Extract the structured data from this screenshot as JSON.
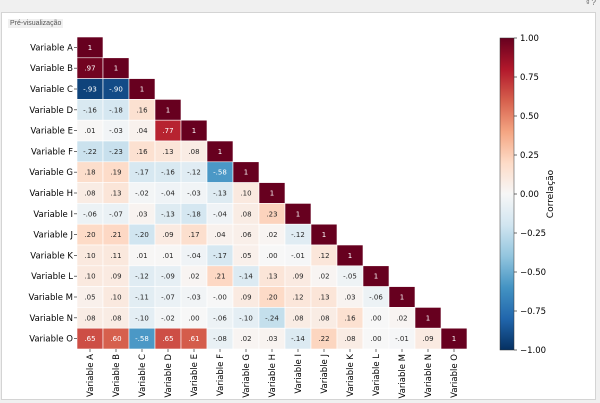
{
  "panel": {
    "title": "Pré-visualização",
    "corner_text": "ᵍ ?"
  },
  "chart_data": {
    "type": "heatmap",
    "variables": [
      "Variable A",
      "Variable B",
      "Variable C",
      "Variable D",
      "Variable E",
      "Variable F",
      "Variable G",
      "Variable H",
      "Variable I",
      "Variable J",
      "Variable K",
      "Variable L",
      "Variable M",
      "Variable N",
      "Variable O"
    ],
    "matrix_lower": [
      [
        1
      ],
      [
        0.97,
        1
      ],
      [
        -0.93,
        -0.9,
        1
      ],
      [
        -0.16,
        -0.18,
        0.16,
        1
      ],
      [
        0.01,
        -0.03,
        0.04,
        0.77,
        1
      ],
      [
        -0.22,
        -0.23,
        0.16,
        0.13,
        0.08,
        1
      ],
      [
        0.18,
        0.19,
        -0.17,
        -0.16,
        -0.12,
        -0.58,
        1
      ],
      [
        0.08,
        0.13,
        -0.02,
        -0.04,
        -0.03,
        -0.13,
        0.1,
        1
      ],
      [
        -0.06,
        -0.07,
        0.03,
        -0.13,
        -0.18,
        -0.04,
        0.08,
        0.23,
        1
      ],
      [
        0.2,
        0.21,
        -0.2,
        0.09,
        0.17,
        0.04,
        0.06,
        0.02,
        -0.12,
        1
      ],
      [
        0.1,
        0.11,
        0.01,
        0.01,
        -0.04,
        -0.17,
        0.05,
        0.0,
        -0.01,
        0.12,
        1
      ],
      [
        0.1,
        0.09,
        -0.12,
        -0.09,
        0.02,
        0.21,
        -0.14,
        0.13,
        0.09,
        0.02,
        -0.05,
        1
      ],
      [
        0.05,
        0.1,
        -0.11,
        -0.07,
        -0.03,
        -0.0,
        0.09,
        0.2,
        0.12,
        0.13,
        0.03,
        -0.06,
        1
      ],
      [
        0.08,
        0.08,
        -0.1,
        -0.02,
        0.0,
        -0.06,
        -0.1,
        -0.24,
        0.08,
        0.08,
        0.16,
        0.0,
        0.02,
        1
      ],
      [
        0.65,
        0.6,
        -0.58,
        0.65,
        0.61,
        -0.08,
        0.02,
        0.03,
        -0.14,
        0.22,
        0.08,
        0.0,
        -0.01,
        0.09,
        1
      ]
    ],
    "cell_labels": [
      [
        "1"
      ],
      [
        ".97",
        "1"
      ],
      [
        "-.93",
        "-.90",
        "1"
      ],
      [
        "-.16",
        "-.18",
        ".16",
        "1"
      ],
      [
        ".01",
        "-.03",
        ".04",
        ".77",
        "1"
      ],
      [
        "-.22",
        "-.23",
        ".16",
        ".13",
        ".08",
        "1"
      ],
      [
        ".18",
        ".19",
        "-.17",
        "-.16",
        "-.12",
        "-.58",
        "1"
      ],
      [
        ".08",
        ".13",
        "-.02",
        "-.04",
        "-.03",
        "-.13",
        ".10",
        "1"
      ],
      [
        "-.06",
        "-.07",
        ".03",
        "-.13",
        "-.18",
        "-.04",
        ".08",
        ".23",
        "1"
      ],
      [
        ".20",
        ".21",
        "-.20",
        ".09",
        ".17",
        ".04",
        ".06",
        ".02",
        "-.12",
        "1"
      ],
      [
        ".10",
        ".11",
        ".01",
        ".01",
        "-.04",
        "-.17",
        ".05",
        ".00",
        "-.01",
        ".12",
        "1"
      ],
      [
        ".10",
        ".09",
        "-.12",
        "-.09",
        ".02",
        ".21",
        "-.14",
        ".13",
        ".09",
        ".02",
        "-.05",
        "1"
      ],
      [
        ".05",
        ".10",
        "-.11",
        "-.07",
        "-.03",
        "-.00",
        ".09",
        ".20",
        ".12",
        ".13",
        ".03",
        "-.06",
        "1"
      ],
      [
        ".08",
        ".08",
        "-.10",
        "-.02",
        ".00",
        "-.06",
        "-.10",
        "-.24",
        ".08",
        ".08",
        ".16",
        ".00",
        ".02",
        "1"
      ],
      [
        ".65",
        ".60",
        "-.58",
        ".65",
        ".61",
        "-.08",
        ".02",
        ".03",
        "-.14",
        ".22",
        ".08",
        ".00",
        "-.01",
        ".09",
        "1"
      ]
    ],
    "colorbar": {
      "label": "Correlação",
      "range": [
        -1.0,
        1.0
      ],
      "ticks": [
        1.0,
        0.75,
        0.5,
        0.25,
        0.0,
        -0.25,
        -0.5,
        -0.75,
        -1.0
      ],
      "tick_labels": [
        "1.00",
        "0.75",
        "0.50",
        "0.25",
        "0.00",
        "−0.25",
        "−0.50",
        "−0.75",
        "−1.00"
      ],
      "colormap": "RdBu_r",
      "colors": [
        "#053061",
        "#2166ac",
        "#4393c3",
        "#92c5de",
        "#d1e5f0",
        "#f7f7f7",
        "#fddbc7",
        "#f4a582",
        "#d6604d",
        "#b2182b",
        "#67001f"
      ]
    },
    "legend": "right"
  }
}
